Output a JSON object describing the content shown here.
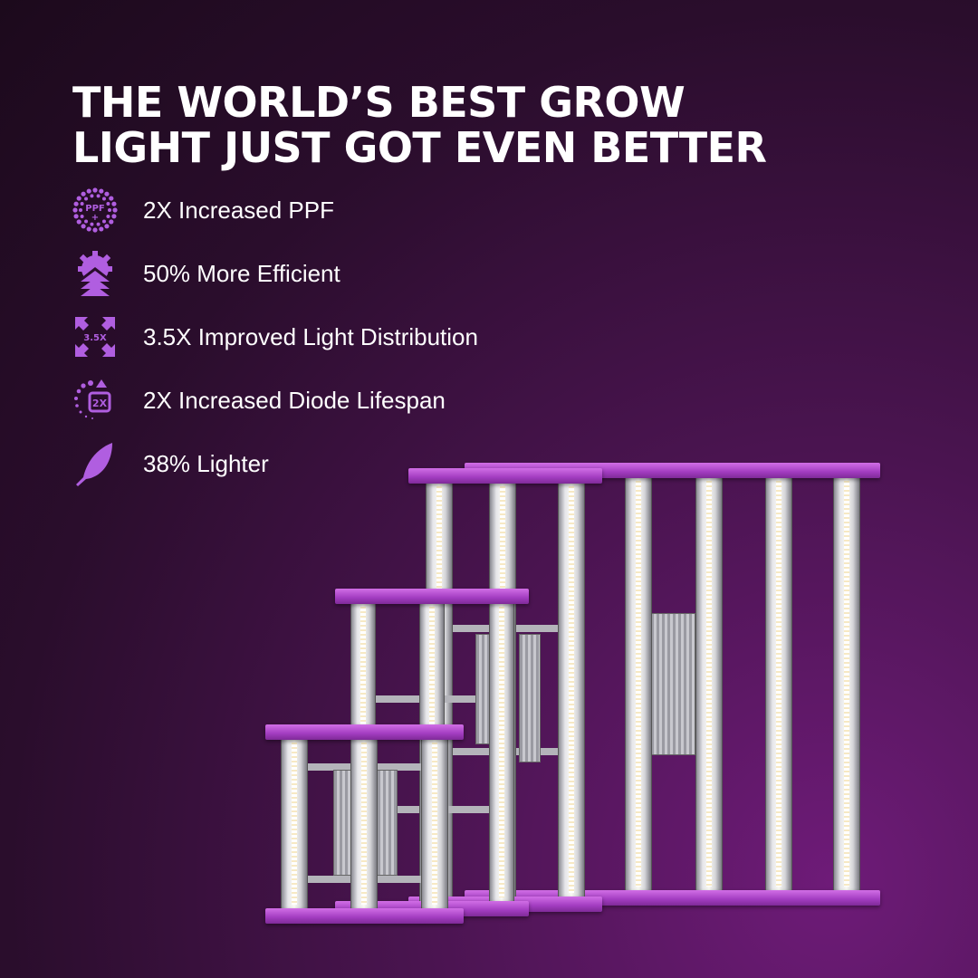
{
  "headline": {
    "line1": "THE WORLD’S BEST GROW",
    "line2": "LIGHT JUST GOT EVEN BETTER"
  },
  "features": [
    {
      "icon": "ppf-dots-icon",
      "icon_text": "PPF",
      "label": "2X Increased PPF"
    },
    {
      "icon": "gear-arrows-up-icon",
      "label": "50% More Efficient"
    },
    {
      "icon": "expand-arrows-icon",
      "icon_text": "3.5X",
      "label": "3.5X Improved Light Distribution"
    },
    {
      "icon": "lifespan-2x-icon",
      "icon_text": "2X",
      "label": "2X Increased Diode Lifespan"
    },
    {
      "icon": "feather-icon",
      "label": "38% Lighter"
    }
  ],
  "colors": {
    "accent": "#b05ee0",
    "rail": "#b047cc",
    "background_dark": "#1c0a1c",
    "background_light": "#6e1b78"
  }
}
